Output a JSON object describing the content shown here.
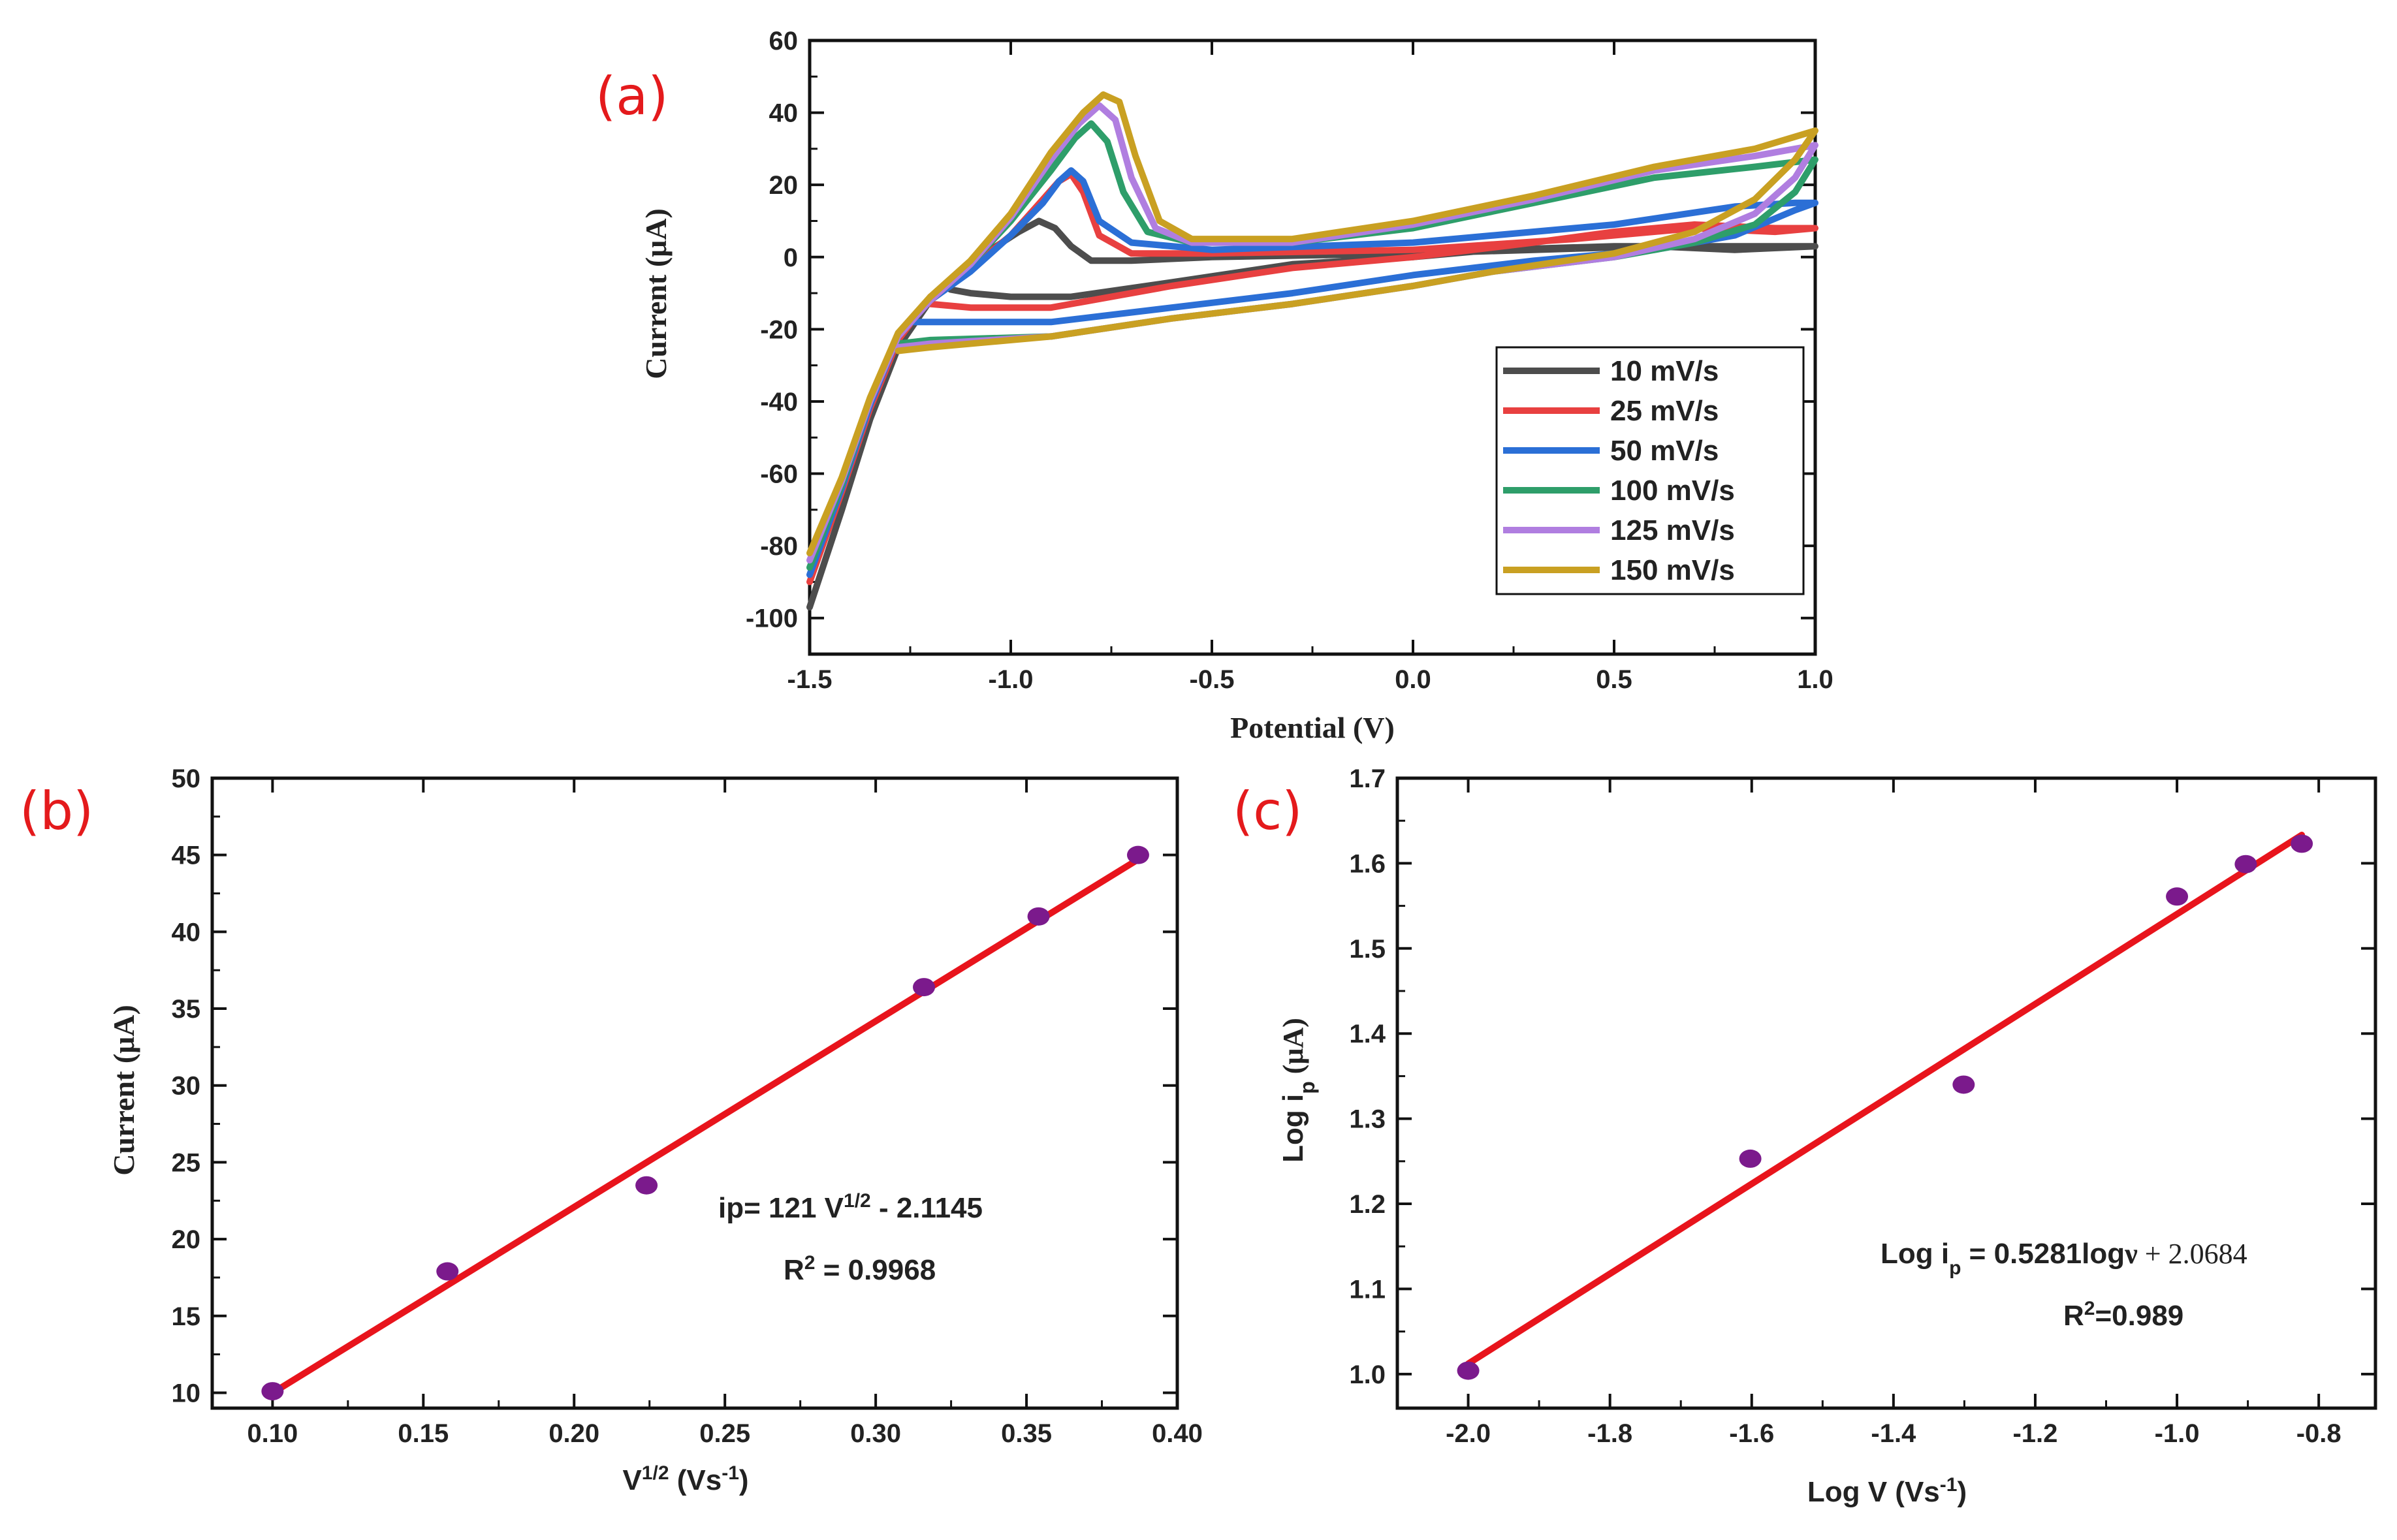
{
  "chart_data": [
    {
      "panel": "(a)",
      "type": "line",
      "title": "",
      "xlabel": "Potential (V)",
      "ylabel": "Current (μA)",
      "xlim": [
        -1.5,
        1.0
      ],
      "ylim": [
        -110,
        60
      ],
      "xticks": [
        -1.5,
        -1.0,
        -0.5,
        0.0,
        0.5,
        1.0
      ],
      "xtick_labels": [
        "-1.5",
        "-1.0",
        "-0.5",
        "0.0",
        "0.5",
        "1.0"
      ],
      "yticks": [
        -100,
        -80,
        -60,
        -40,
        -20,
        0,
        20,
        40,
        60
      ],
      "ytick_labels": [
        "-100",
        "-80",
        "-60",
        "-40",
        "-20",
        "0",
        "20",
        "40",
        "60"
      ],
      "legend_position": "bottom-right",
      "series": [
        {
          "name": "10 mV/s",
          "color": "#4d4d4d",
          "forward": [
            [
              -1.5,
              -97
            ],
            [
              -1.42,
              -70
            ],
            [
              -1.35,
              -45
            ],
            [
              -1.28,
              -25
            ],
            [
              -1.2,
              -12
            ],
            [
              -1.12,
              -4
            ],
            [
              -1.05,
              2
            ],
            [
              -0.98,
              7
            ],
            [
              -0.93,
              10
            ],
            [
              -0.89,
              8
            ],
            [
              -0.85,
              3
            ],
            [
              -0.8,
              -1
            ],
            [
              -0.7,
              -1
            ],
            [
              -0.5,
              0
            ],
            [
              0.0,
              1
            ],
            [
              0.3,
              2
            ],
            [
              0.6,
              3
            ],
            [
              0.8,
              2
            ],
            [
              1.0,
              3
            ]
          ],
          "reverse": [
            [
              1.0,
              3
            ],
            [
              0.8,
              3
            ],
            [
              0.5,
              3
            ],
            [
              0.2,
              2
            ],
            [
              0.0,
              0
            ],
            [
              -0.3,
              -2
            ],
            [
              -0.6,
              -7
            ],
            [
              -0.85,
              -11
            ],
            [
              -1.0,
              -11
            ],
            [
              -1.1,
              -10
            ],
            [
              -1.15,
              -9
            ]
          ]
        },
        {
          "name": "25 mV/s",
          "color": "#e84040",
          "forward": [
            [
              -1.5,
              -90
            ],
            [
              -1.42,
              -65
            ],
            [
              -1.35,
              -42
            ],
            [
              -1.28,
              -23
            ],
            [
              -1.2,
              -11
            ],
            [
              -1.1,
              -3
            ],
            [
              -1.0,
              6
            ],
            [
              -0.92,
              16
            ],
            [
              -0.88,
              21
            ],
            [
              -0.85,
              23
            ],
            [
              -0.82,
              18
            ],
            [
              -0.78,
              6
            ],
            [
              -0.7,
              1
            ],
            [
              -0.5,
              1
            ],
            [
              0.0,
              2
            ],
            [
              0.4,
              5
            ],
            [
              0.7,
              8
            ],
            [
              0.9,
              7
            ],
            [
              1.0,
              8
            ]
          ],
          "reverse": [
            [
              1.0,
              8
            ],
            [
              0.9,
              8
            ],
            [
              0.7,
              9
            ],
            [
              0.5,
              7
            ],
            [
              0.3,
              4
            ],
            [
              0.0,
              0
            ],
            [
              -0.3,
              -3
            ],
            [
              -0.6,
              -8
            ],
            [
              -0.9,
              -14
            ],
            [
              -1.1,
              -14
            ],
            [
              -1.2,
              -13
            ]
          ]
        },
        {
          "name": "50 mV/s",
          "color": "#2b6fd6",
          "forward": [
            [
              -1.5,
              -88
            ],
            [
              -1.42,
              -64
            ],
            [
              -1.35,
              -41
            ],
            [
              -1.28,
              -22
            ],
            [
              -1.2,
              -12
            ],
            [
              -1.1,
              -4
            ],
            [
              -1.0,
              6
            ],
            [
              -0.92,
              15
            ],
            [
              -0.88,
              21
            ],
            [
              -0.85,
              24
            ],
            [
              -0.82,
              21
            ],
            [
              -0.78,
              10
            ],
            [
              -0.7,
              4
            ],
            [
              -0.5,
              2
            ],
            [
              0.0,
              4
            ],
            [
              0.5,
              9
            ],
            [
              0.8,
              14
            ],
            [
              0.95,
              15
            ],
            [
              1.0,
              15
            ]
          ],
          "reverse": [
            [
              1.0,
              15
            ],
            [
              0.95,
              13
            ],
            [
              0.8,
              6
            ],
            [
              0.6,
              2
            ],
            [
              0.3,
              -1
            ],
            [
              0.0,
              -5
            ],
            [
              -0.3,
              -10
            ],
            [
              -0.6,
              -14
            ],
            [
              -0.9,
              -18
            ],
            [
              -1.15,
              -18
            ],
            [
              -1.25,
              -18
            ]
          ]
        },
        {
          "name": "100 mV/s",
          "color": "#2e9e6a",
          "forward": [
            [
              -1.5,
              -86
            ],
            [
              -1.42,
              -63
            ],
            [
              -1.35,
              -40
            ],
            [
              -1.28,
              -22
            ],
            [
              -1.2,
              -12
            ],
            [
              -1.1,
              -2
            ],
            [
              -1.0,
              10
            ],
            [
              -0.9,
              24
            ],
            [
              -0.84,
              33
            ],
            [
              -0.8,
              37
            ],
            [
              -0.76,
              32
            ],
            [
              -0.72,
              18
            ],
            [
              -0.66,
              7
            ],
            [
              -0.55,
              4
            ],
            [
              -0.3,
              4
            ],
            [
              0.0,
              8
            ],
            [
              0.3,
              15
            ],
            [
              0.6,
              22
            ],
            [
              0.85,
              25
            ],
            [
              1.0,
              27
            ]
          ],
          "reverse": [
            [
              1.0,
              27
            ],
            [
              0.95,
              18
            ],
            [
              0.85,
              9
            ],
            [
              0.7,
              4
            ],
            [
              0.5,
              0
            ],
            [
              0.2,
              -4
            ],
            [
              0.0,
              -8
            ],
            [
              -0.3,
              -13
            ],
            [
              -0.6,
              -17
            ],
            [
              -0.9,
              -22
            ],
            [
              -1.2,
              -23
            ],
            [
              -1.28,
              -24
            ]
          ]
        },
        {
          "name": "125 mV/s",
          "color": "#b07ee0",
          "forward": [
            [
              -1.5,
              -84
            ],
            [
              -1.42,
              -62
            ],
            [
              -1.35,
              -40
            ],
            [
              -1.28,
              -22
            ],
            [
              -1.2,
              -12
            ],
            [
              -1.1,
              -2
            ],
            [
              -1.0,
              11
            ],
            [
              -0.9,
              27
            ],
            [
              -0.83,
              37
            ],
            [
              -0.78,
              42
            ],
            [
              -0.74,
              38
            ],
            [
              -0.7,
              22
            ],
            [
              -0.64,
              8
            ],
            [
              -0.55,
              4
            ],
            [
              -0.3,
              4
            ],
            [
              0.0,
              9
            ],
            [
              0.3,
              16
            ],
            [
              0.6,
              24
            ],
            [
              0.85,
              28
            ],
            [
              1.0,
              31
            ]
          ],
          "reverse": [
            [
              1.0,
              31
            ],
            [
              0.95,
              22
            ],
            [
              0.85,
              12
            ],
            [
              0.7,
              5
            ],
            [
              0.5,
              0
            ],
            [
              0.2,
              -4
            ],
            [
              0.0,
              -8
            ],
            [
              -0.3,
              -13
            ],
            [
              -0.6,
              -17
            ],
            [
              -0.9,
              -22
            ],
            [
              -1.2,
              -24
            ],
            [
              -1.28,
              -25
            ]
          ]
        },
        {
          "name": "150 mV/s",
          "color": "#c9a022",
          "forward": [
            [
              -1.5,
              -82
            ],
            [
              -1.42,
              -61
            ],
            [
              -1.35,
              -39
            ],
            [
              -1.28,
              -21
            ],
            [
              -1.2,
              -11
            ],
            [
              -1.1,
              -1
            ],
            [
              -1.0,
              12
            ],
            [
              -0.9,
              29
            ],
            [
              -0.82,
              40
            ],
            [
              -0.77,
              45
            ],
            [
              -0.73,
              43
            ],
            [
              -0.69,
              28
            ],
            [
              -0.63,
              10
            ],
            [
              -0.55,
              5
            ],
            [
              -0.3,
              5
            ],
            [
              0.0,
              10
            ],
            [
              0.3,
              17
            ],
            [
              0.6,
              25
            ],
            [
              0.85,
              30
            ],
            [
              1.0,
              35
            ]
          ],
          "reverse": [
            [
              1.0,
              35
            ],
            [
              0.95,
              27
            ],
            [
              0.85,
              16
            ],
            [
              0.7,
              7
            ],
            [
              0.5,
              1
            ],
            [
              0.2,
              -4
            ],
            [
              0.0,
              -8
            ],
            [
              -0.3,
              -13
            ],
            [
              -0.6,
              -17
            ],
            [
              -0.9,
              -22
            ],
            [
              -1.2,
              -25
            ],
            [
              -1.28,
              -26
            ]
          ]
        }
      ]
    },
    {
      "panel": "(b)",
      "type": "scatter",
      "title": "",
      "xlabel": "V",
      "xlabel_sup": "1/2",
      "xlabel_rest": " (Vs",
      "xlabel_sup2": "-1",
      "xlabel_end": ")",
      "ylabel": "Current (μA)",
      "xlim": [
        0.08,
        0.4
      ],
      "ylim": [
        9,
        50
      ],
      "xticks": [
        0.1,
        0.15,
        0.2,
        0.25,
        0.3,
        0.35,
        0.4
      ],
      "xtick_labels": [
        "0.10",
        "0.15",
        "0.20",
        "0.25",
        "0.30",
        "0.35",
        "0.40"
      ],
      "yticks": [
        10,
        15,
        20,
        25,
        30,
        35,
        40,
        45,
        50
      ],
      "ytick_labels": [
        "10",
        "15",
        "20",
        "25",
        "30",
        "35",
        "40",
        "45",
        "50"
      ],
      "point_color": "#7b1a8c",
      "fit_color": "#e8141c",
      "x": [
        0.1,
        0.158,
        0.224,
        0.316,
        0.354,
        0.387
      ],
      "y": [
        10.1,
        17.9,
        23.5,
        36.4,
        41.0,
        45.0
      ],
      "fit": {
        "slope": 121,
        "intercept": -2.1145,
        "x_range": [
          0.1,
          0.387
        ]
      },
      "equation_lead": "ip= 121 V",
      "equation_sup": "1/2",
      "equation_tail": " - 2.1145",
      "r2_lead": "R",
      "r2_sup": "2",
      "r2_tail": " = 0.9968"
    },
    {
      "panel": "(c)",
      "type": "scatter",
      "title": "",
      "xlabel": "Log V (Vs",
      "xlabel_sup": "-1",
      "xlabel_end": ")",
      "ylabel": "Log i",
      "ylabel_sub": "p",
      "ylabel_unit": " (μA)",
      "xlim": [
        -2.1,
        -0.72
      ],
      "ylim": [
        0.96,
        1.7
      ],
      "xticks": [
        -2.0,
        -1.8,
        -1.6,
        -1.4,
        -1.2,
        -1.0,
        -0.8
      ],
      "xtick_labels": [
        "-2.0",
        "-1.8",
        "-1.6",
        "-1.4",
        "-1.2",
        "-1.0",
        "-0.8"
      ],
      "yticks": [
        1.0,
        1.1,
        1.2,
        1.3,
        1.4,
        1.5,
        1.6,
        1.7
      ],
      "ytick_labels": [
        "1.0",
        "1.1",
        "1.2",
        "1.3",
        "1.4",
        "1.5",
        "1.6",
        "1.7"
      ],
      "point_color": "#7b1a8c",
      "fit_color": "#e8141c",
      "x": [
        -2.0,
        -1.602,
        -1.301,
        -1.0,
        -0.903,
        -0.824
      ],
      "y": [
        1.004,
        1.253,
        1.34,
        1.561,
        1.599,
        1.623
      ],
      "fit": {
        "slope": 0.5281,
        "intercept": 2.0684,
        "x_range": [
          -2.0,
          -0.824
        ]
      },
      "equation_lead": "Log i",
      "equation_sub": "p",
      "equation_mid": " = 0.5281log",
      "equation_nu": "ν",
      "equation_tail": " + 2.0684",
      "r2_lead": "R",
      "r2_sup": "2",
      "r2_tail": "=0.989"
    }
  ],
  "panel_labels": {
    "a": "(a)",
    "b": "(b)",
    "c": "(c)"
  }
}
